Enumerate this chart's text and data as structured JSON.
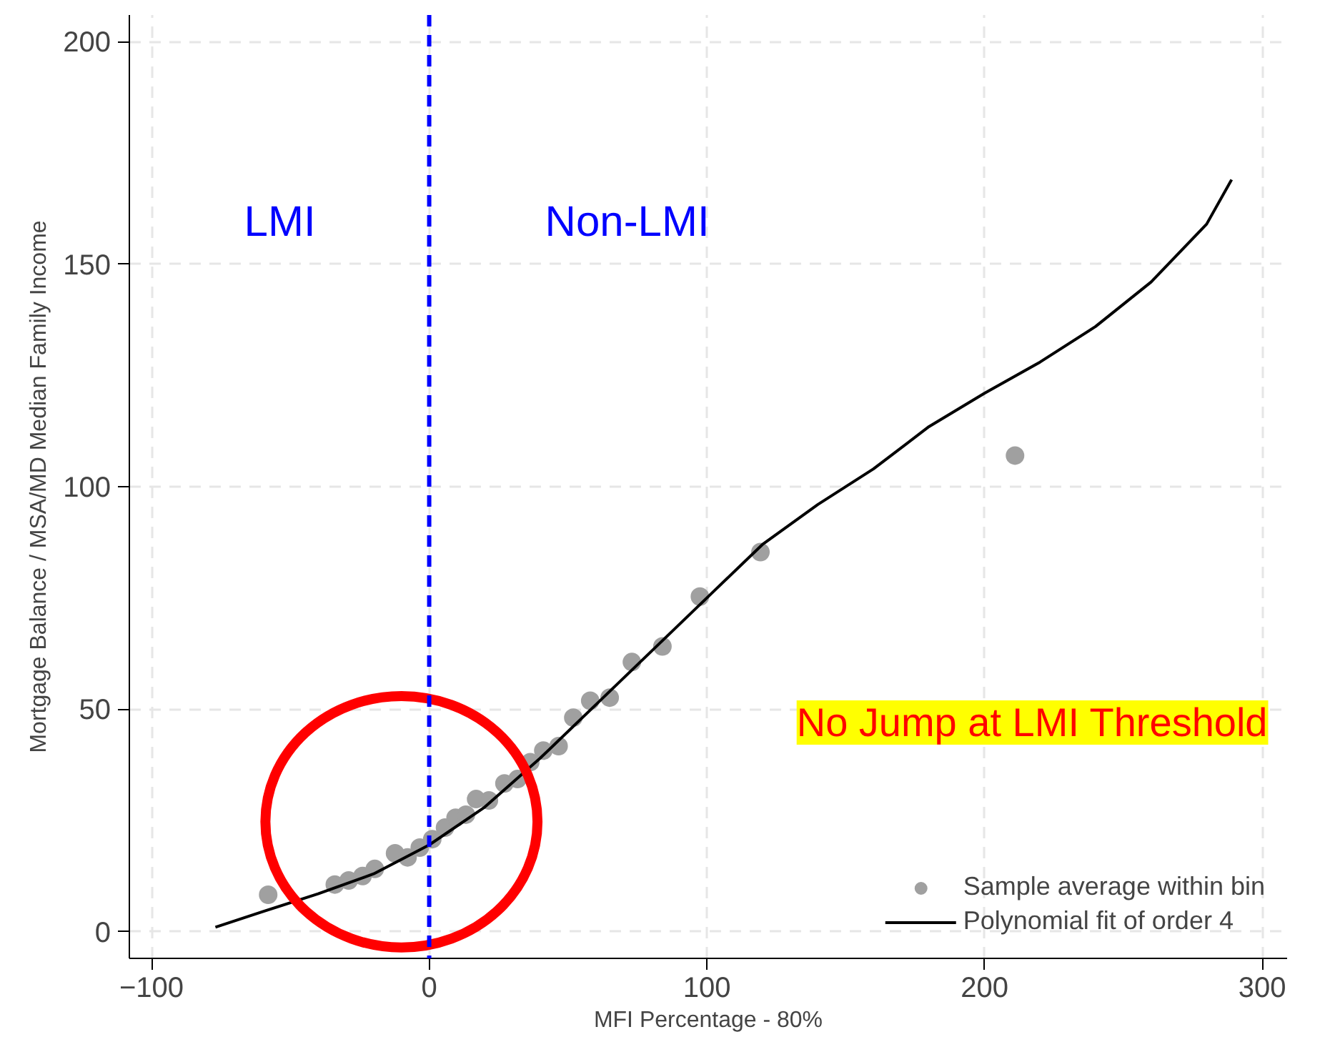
{
  "chart_data": {
    "type": "scatter",
    "xlabel": "MFI Percentage - 80%",
    "ylabel": "Mortgage Balance / MSA/MD Median Family Income",
    "xlim": [
      -108,
      309
    ],
    "ylim": [
      -6,
      206
    ],
    "xticks": [
      -100,
      0,
      100,
      200,
      300
    ],
    "yticks": [
      0,
      50,
      100,
      150,
      200
    ],
    "grid": true,
    "legend": "bottom right",
    "series": [
      {
        "name": "Sample average within bin",
        "marker": "circle",
        "color": "#a0a0a0",
        "x": [
          -58,
          -34,
          -29,
          -24,
          -19.6,
          -12.3,
          -7.8,
          -3.4,
          1.1,
          5.7,
          9.5,
          13.2,
          16.9,
          21.5,
          27.1,
          31.8,
          36.4,
          41.1,
          46.6,
          51.9,
          58,
          65,
          73,
          84,
          97.5,
          119.3,
          211
        ],
        "values": [
          8.3,
          10.6,
          11.5,
          12.5,
          14.1,
          17.6,
          16.7,
          18.9,
          20.8,
          23.4,
          25.6,
          26.3,
          29.8,
          29.5,
          33.3,
          34.3,
          38.1,
          40.7,
          41.7,
          48.1,
          51.9,
          52.6,
          60.6,
          64.1,
          75.3,
          85.3,
          107
        ]
      },
      {
        "name": "Polynomial fit of order 4",
        "type": "line",
        "color": "#000000",
        "line_style": "solid",
        "x": [
          -77,
          -60,
          -40,
          -20,
          0,
          20,
          40,
          60,
          80,
          100,
          120,
          140,
          160,
          180,
          200,
          220,
          240,
          260,
          280,
          289
        ],
        "values": [
          1,
          4.5,
          8.5,
          13,
          19.5,
          28,
          39,
          51,
          63,
          75,
          87,
          96,
          104,
          113.5,
          121,
          128,
          136,
          146,
          159,
          169
        ]
      }
    ],
    "ref_lines": [
      {
        "axis": "x",
        "value": 0,
        "color": "#0000ff",
        "line_style": "dashed"
      }
    ],
    "annotations": [
      "LMI",
      "Non-LMI",
      "No Jump at LMI Threshold"
    ]
  }
}
